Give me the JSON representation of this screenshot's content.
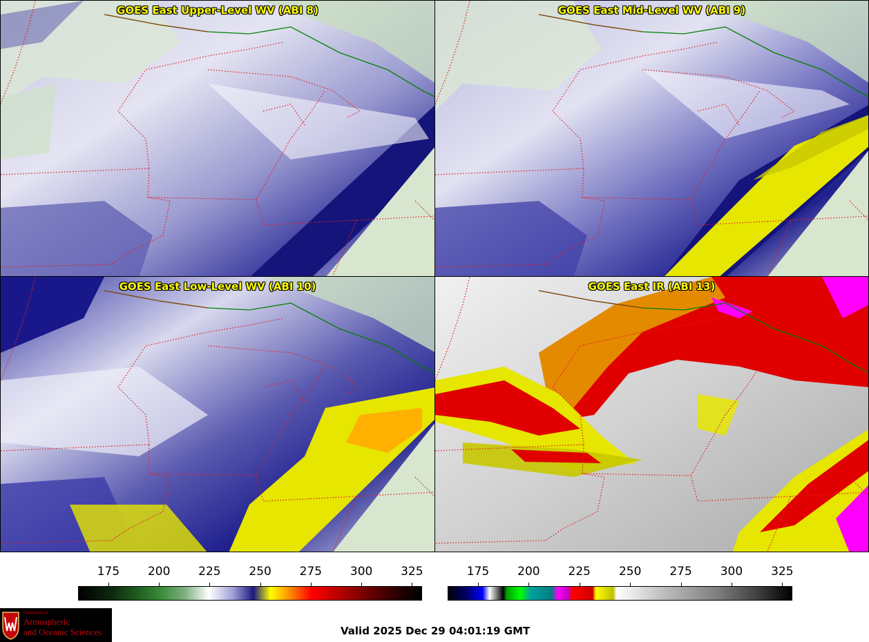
{
  "panels": [
    {
      "title": "GOES East Upper-Level WV (ABI 8)"
    },
    {
      "title": "GOES East Mid-Level WV (ABI 9)"
    },
    {
      "title": "GOES East Low-Level WV (ABI 10)"
    },
    {
      "title": "GOES East IR (ABI 13)"
    }
  ],
  "colorbars": {
    "wv": {
      "ticks": [
        "175",
        "200",
        "225",
        "250",
        "275",
        "300",
        "325"
      ],
      "range": [
        160,
        330
      ]
    },
    "ir": {
      "ticks": [
        "175",
        "200",
        "225",
        "250",
        "275",
        "300",
        "325"
      ],
      "range": [
        160,
        330
      ]
    }
  },
  "valid_time": "Valid 2025 Dec 29 04:01:19 GMT",
  "logo": {
    "dept": "Department of",
    "line1": "Atmospheric",
    "line2": "and Oceanic Sciences"
  },
  "colors": {
    "boundary": "#e02020",
    "coast": "#008000",
    "border": "#8b4513",
    "title": "#ffff00"
  }
}
